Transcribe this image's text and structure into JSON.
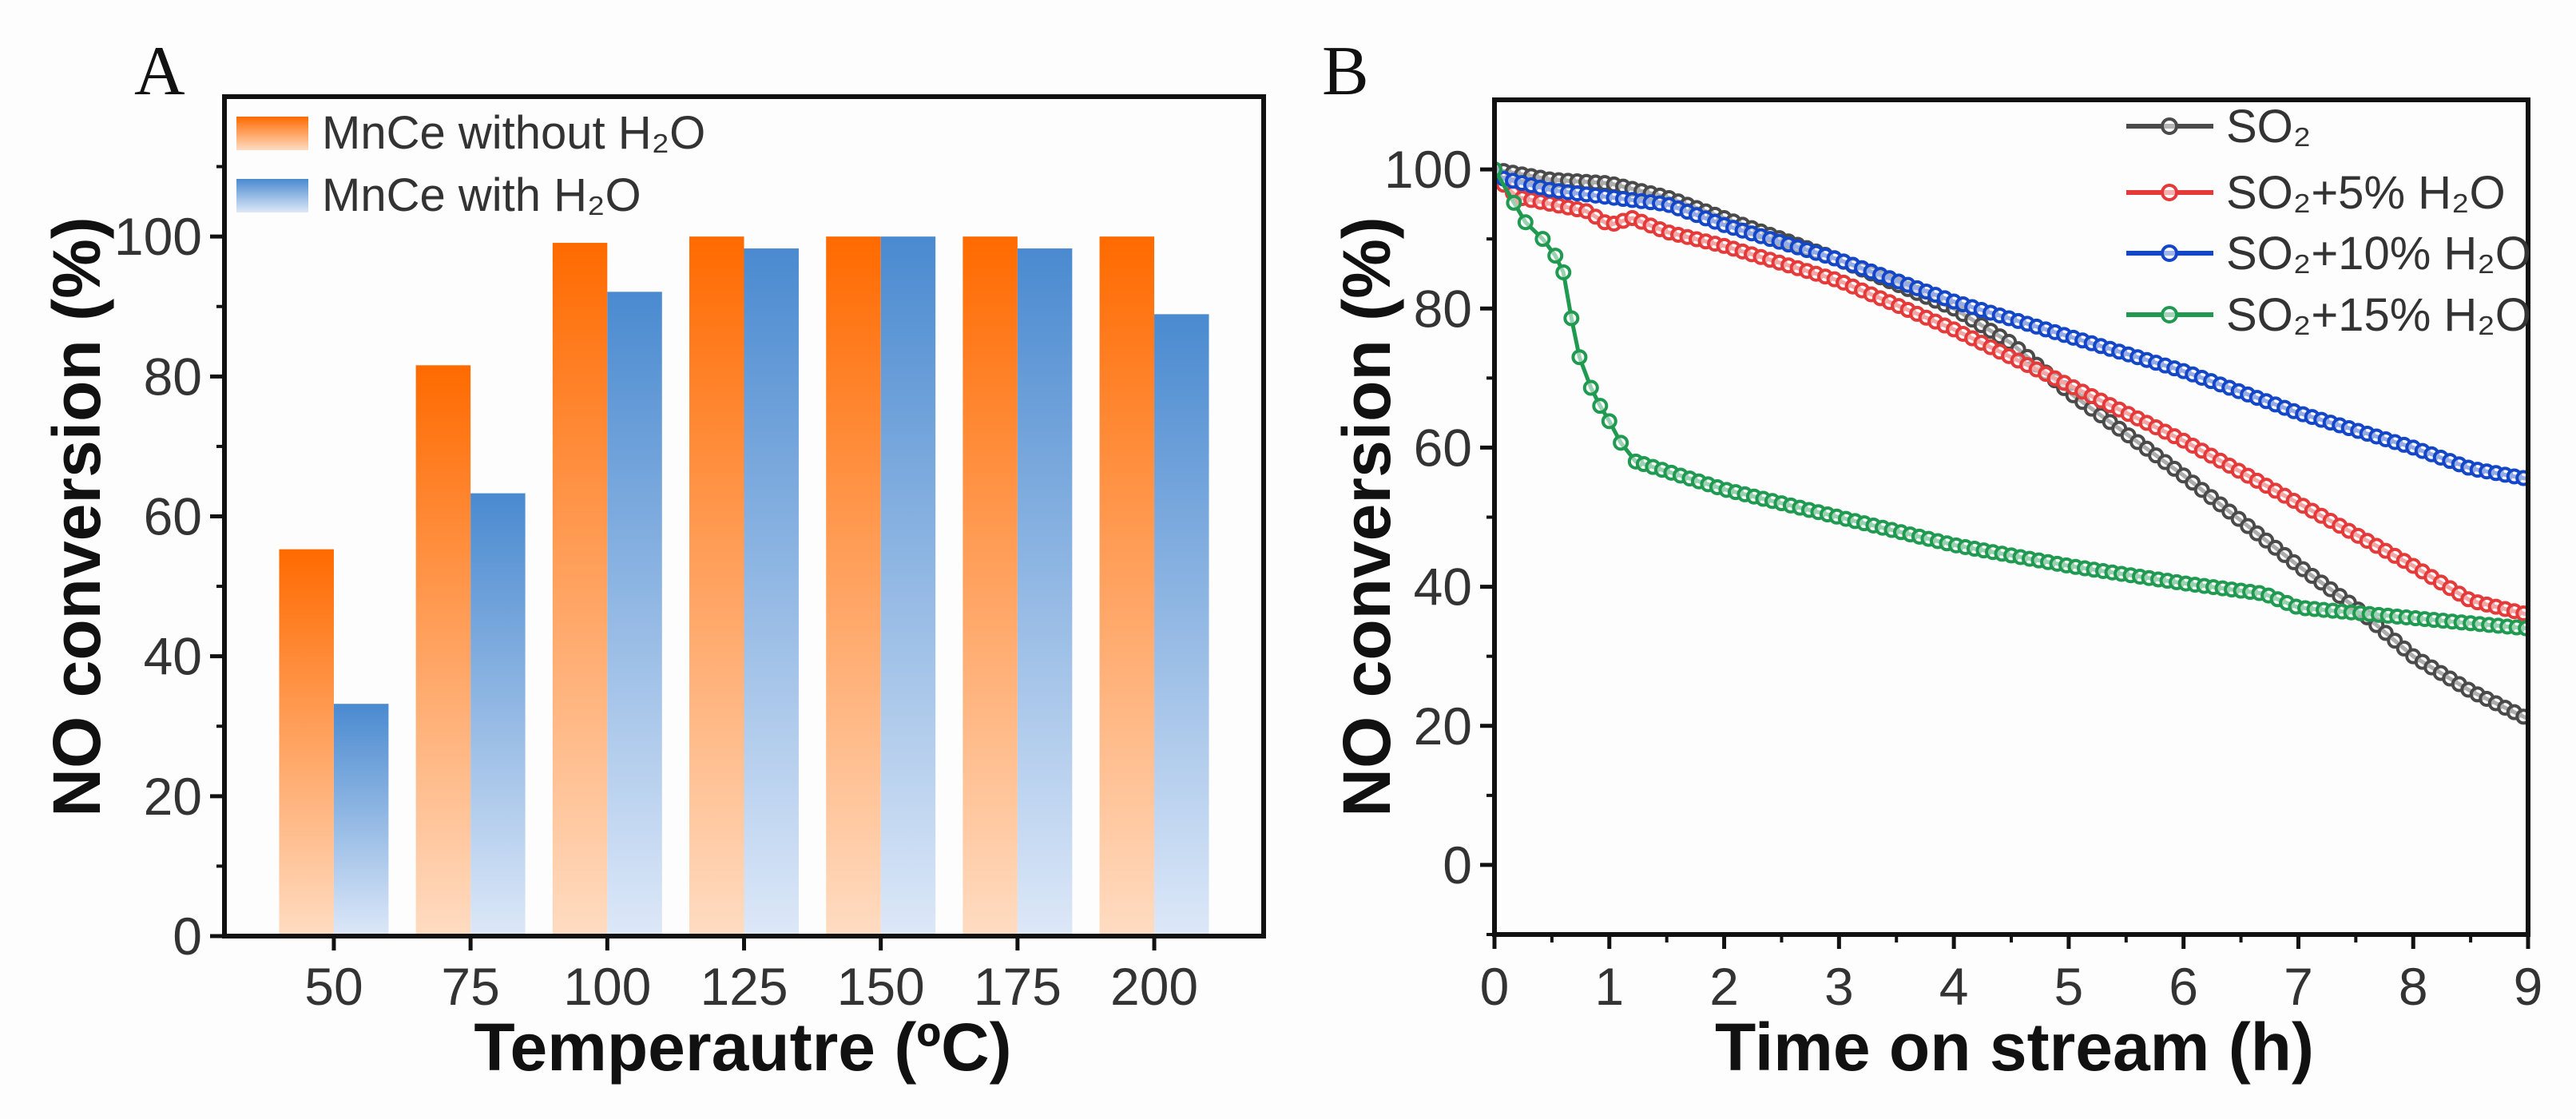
{
  "colors": {
    "orange_top": "#ff6a00",
    "orange_bottom": "#ffdcc2",
    "blue_top": "#4a8ad0",
    "blue_bottom": "#dde8f8",
    "so2": "#4a4a4a",
    "so2_5": "#e53a3a",
    "so2_10": "#1446c8",
    "so2_15": "#1f9a50"
  },
  "chart_data": [
    {
      "panel": "A",
      "type": "bar",
      "xlabel": "Temperautre (ºC)",
      "ylabel": "NO conversion (%)",
      "categories": [
        "50",
        "75",
        "100",
        "125",
        "150",
        "175",
        "200"
      ],
      "x_values": [
        50,
        75,
        100,
        125,
        150,
        175,
        200
      ],
      "xlim": [
        30,
        220
      ],
      "ylim": [
        0,
        120
      ],
      "yticks": [
        0,
        20,
        40,
        60,
        80,
        100
      ],
      "legend_position": "top-left",
      "series": [
        {
          "name": "MnCe without H₂O",
          "values": [
            55.3,
            81.6,
            99.1,
            100,
            100,
            100,
            100
          ]
        },
        {
          "name": "MnCe with H₂O",
          "values": [
            33.2,
            63.3,
            92.1,
            98.3,
            100,
            98.3,
            88.9
          ]
        }
      ]
    },
    {
      "panel": "B",
      "type": "line",
      "xlabel": "Time on stream (h)",
      "ylabel": "NO conversion (%)",
      "xlim": [
        0,
        9
      ],
      "ylim": [
        -10,
        110
      ],
      "xticks": [
        0,
        1,
        2,
        3,
        4,
        5,
        6,
        7,
        8,
        9
      ],
      "yticks": [
        0,
        20,
        40,
        60,
        80,
        100
      ],
      "legend_position": "top-right",
      "series": [
        {
          "name": "SO₂",
          "x": [
            0,
            0.5,
            1,
            1.5,
            2,
            3,
            4,
            4.5,
            5,
            6,
            7,
            7.5,
            8,
            8.5,
            9
          ],
          "y": [
            100,
            98.5,
            98,
            96,
            93,
            87,
            80,
            75,
            68,
            56,
            43,
            37,
            30,
            25,
            21
          ]
        },
        {
          "name": "SO₂+5% H₂O",
          "x": [
            0,
            0.2,
            0.5,
            0.8,
            1,
            1.2,
            1.5,
            2,
            3,
            4,
            4.5,
            5,
            6,
            7,
            8,
            8.5,
            9
          ],
          "y": [
            99,
            96,
            95,
            94,
            92,
            93,
            91,
            89,
            84,
            77,
            73,
            69,
            61,
            52,
            43,
            38,
            36
          ]
        },
        {
          "name": "SO₂+10% H₂O",
          "x": [
            0,
            0.5,
            1,
            1.5,
            2,
            3,
            4,
            5,
            6,
            7,
            8,
            8.5,
            9
          ],
          "y": [
            99,
            97,
            96,
            95,
            92,
            87,
            81,
            76,
            71,
            65,
            60,
            57,
            55.5
          ]
        },
        {
          "name": "SO₂+15% H₂O",
          "x": [
            0,
            0.17,
            0.27,
            0.42,
            0.53,
            0.6,
            0.67,
            0.74,
            0.84,
            0.92,
            1.0,
            1.1,
            1.23,
            2,
            3,
            4,
            5,
            6,
            6.7,
            7,
            8,
            9
          ],
          "y": [
            100,
            95.2,
            92.4,
            90,
            87.6,
            85.2,
            78.6,
            73,
            68.6,
            66,
            63.8,
            60.7,
            58,
            54,
            50,
            46,
            43,
            40.5,
            39,
            37,
            35.5,
            34
          ]
        }
      ]
    }
  ]
}
